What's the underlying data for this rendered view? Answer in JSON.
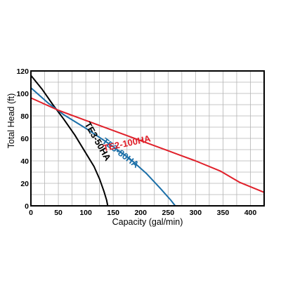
{
  "chart_data": {
    "type": "line",
    "title": "",
    "xlabel": "Capacity  (gal/min)",
    "ylabel": "Total  Head  (ft)",
    "xlim": [
      0,
      425
    ],
    "ylim": [
      0,
      120
    ],
    "xticks": [
      0,
      50,
      100,
      150,
      200,
      250,
      300,
      350,
      400
    ],
    "yticks": [
      0,
      20,
      40,
      60,
      80,
      100,
      120
    ],
    "grid": true,
    "legend": "none",
    "series": [
      {
        "name": "TE3-50HA",
        "color": "#000000",
        "label_at": [
          117,
          56
        ],
        "points": [
          [
            0,
            116
          ],
          [
            20,
            104
          ],
          [
            40,
            90
          ],
          [
            60,
            77
          ],
          [
            80,
            63
          ],
          [
            100,
            47
          ],
          [
            115,
            35
          ],
          [
            125,
            24
          ],
          [
            133,
            13
          ],
          [
            138,
            5
          ],
          [
            140,
            0
          ]
        ]
      },
      {
        "name": "TE3-80HA",
        "color": "#1b6fa8",
        "label_at": [
          160,
          45
        ],
        "points": [
          [
            0,
            105
          ],
          [
            30,
            92
          ],
          [
            60,
            81
          ],
          [
            100,
            69
          ],
          [
            140,
            56
          ],
          [
            180,
            42
          ],
          [
            210,
            29
          ],
          [
            235,
            16
          ],
          [
            255,
            5
          ],
          [
            263,
            0
          ]
        ]
      },
      {
        "name": "TE2-100HA",
        "color": "#e0202a",
        "label_at": [
          176,
          53
        ],
        "points": [
          [
            0,
            96
          ],
          [
            50,
            85
          ],
          [
            100,
            76
          ],
          [
            150,
            67
          ],
          [
            200,
            58
          ],
          [
            250,
            49
          ],
          [
            300,
            40
          ],
          [
            345,
            31
          ],
          [
            380,
            21
          ],
          [
            425,
            12
          ]
        ]
      }
    ]
  }
}
